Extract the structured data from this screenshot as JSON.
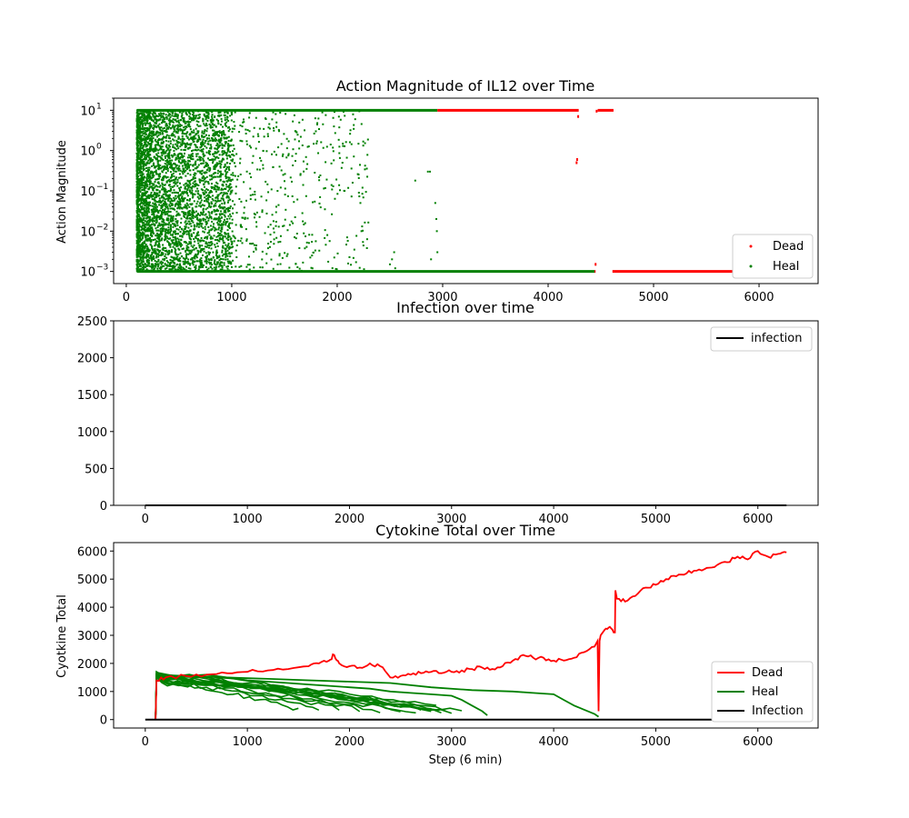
{
  "chart_data": [
    {
      "type": "scatter",
      "title": "Action Magnitude of IL12 over Time",
      "xlabel": "",
      "ylabel": "Action Magnitude",
      "yscale": "log",
      "xlim": [
        -120,
        6560
      ],
      "ylim": [
        0.0005,
        20
      ],
      "xticks": [
        {
          "v": 0,
          "label": "0"
        },
        {
          "v": 1000,
          "label": "1000"
        },
        {
          "v": 2000,
          "label": "2000"
        },
        {
          "v": 3000,
          "label": "3000"
        },
        {
          "v": 4000,
          "label": "4000"
        },
        {
          "v": 5000,
          "label": "5000"
        },
        {
          "v": 6000,
          "label": "6000"
        }
      ],
      "yticks": [
        {
          "v": 0.001,
          "base": "10",
          "exp": "−3"
        },
        {
          "v": 0.01,
          "base": "10",
          "exp": "−2"
        },
        {
          "v": 0.1,
          "base": "10",
          "exp": "−1"
        },
        {
          "v": 1,
          "base": "10",
          "exp": "0"
        },
        {
          "v": 10,
          "base": "10",
          "exp": "1"
        }
      ],
      "legend_placement": "lower-right",
      "series": [
        {
          "name": "Dead",
          "color": "#ff0000",
          "segments": [
            {
              "x": [
                2750,
                4290
              ],
              "y": 10
            },
            {
              "x": [
                4470,
                4620
              ],
              "y": 10
            },
            {
              "x": [
                2900,
                4450
              ],
              "y": 0.001
            },
            {
              "x": [
                4610,
                6280
              ],
              "y": 0.001
            }
          ],
          "points": [
            {
              "x": 4270,
              "y": 0.5
            },
            {
              "x": 4275,
              "y": 0.6
            },
            {
              "x": 4285,
              "y": 7
            },
            {
              "x": 4450,
              "y": 0.0015
            },
            {
              "x": 4460,
              "y": 9.5
            }
          ]
        },
        {
          "name": "Heal",
          "color": "#008000",
          "segments": [
            {
              "x": [
                100,
                2950
              ],
              "y": 10
            },
            {
              "x": [
                100,
                4440
              ],
              "y": 0.001
            }
          ],
          "dense_band": {
            "x": [
              100,
              1000
            ],
            "y": [
              0.001,
              10
            ]
          },
          "sparse_band": {
            "x": [
              1000,
              2300
            ],
            "y": [
              0.001,
              10
            ]
          },
          "points": [
            {
              "x": 2500,
              "y": 0.0015
            },
            {
              "x": 2520,
              "y": 0.002
            },
            {
              "x": 2540,
              "y": 0.003
            },
            {
              "x": 2550,
              "y": 0.0012
            },
            {
              "x": 2740,
              "y": 0.18
            },
            {
              "x": 2860,
              "y": 0.3
            },
            {
              "x": 2880,
              "y": 0.3
            },
            {
              "x": 2890,
              "y": 0.002
            },
            {
              "x": 2930,
              "y": 0.05
            },
            {
              "x": 2940,
              "y": 0.02
            },
            {
              "x": 2945,
              "y": 0.01
            },
            {
              "x": 2950,
              "y": 0.003
            },
            {
              "x": 2240,
              "y": 0.12
            },
            {
              "x": 2220,
              "y": 0.05
            },
            {
              "x": 2230,
              "y": 0.01
            },
            {
              "x": 2050,
              "y": 0.5
            },
            {
              "x": 2070,
              "y": 0.1
            }
          ]
        }
      ]
    },
    {
      "type": "line",
      "title": "Infection over time",
      "xlabel": "",
      "ylabel": "",
      "xlim": [
        -310,
        6590
      ],
      "ylim": [
        0,
        2500
      ],
      "xticks": [
        {
          "v": 0,
          "label": "0"
        },
        {
          "v": 1000,
          "label": "1000"
        },
        {
          "v": 2000,
          "label": "2000"
        },
        {
          "v": 3000,
          "label": "3000"
        },
        {
          "v": 4000,
          "label": "4000"
        },
        {
          "v": 5000,
          "label": "5000"
        },
        {
          "v": 6000,
          "label": "6000"
        }
      ],
      "yticks": [
        {
          "v": 0,
          "label": "0"
        },
        {
          "v": 500,
          "label": "500"
        },
        {
          "v": 1000,
          "label": "1000"
        },
        {
          "v": 1500,
          "label": "1500"
        },
        {
          "v": 2000,
          "label": "2000"
        },
        {
          "v": 2500,
          "label": "2500"
        }
      ],
      "legend_placement": "top-right",
      "series": [
        {
          "name": "infection",
          "color": "#000000",
          "x": [
            0,
            6280
          ],
          "y": [
            0,
            0
          ]
        }
      ]
    },
    {
      "type": "line",
      "title": "Cytokine Total over Time",
      "xlabel": "Step (6 min)",
      "ylabel": "Cyotkine Total",
      "xlim": [
        -310,
        6590
      ],
      "ylim": [
        -300,
        6300
      ],
      "xticks": [
        {
          "v": 0,
          "label": "0"
        },
        {
          "v": 1000,
          "label": "1000"
        },
        {
          "v": 2000,
          "label": "2000"
        },
        {
          "v": 3000,
          "label": "3000"
        },
        {
          "v": 4000,
          "label": "4000"
        },
        {
          "v": 5000,
          "label": "5000"
        },
        {
          "v": 6000,
          "label": "6000"
        }
      ],
      "yticks": [
        {
          "v": 0,
          "label": "0"
        },
        {
          "v": 1000,
          "label": "1000"
        },
        {
          "v": 2000,
          "label": "2000"
        },
        {
          "v": 3000,
          "label": "3000"
        },
        {
          "v": 4000,
          "label": "4000"
        },
        {
          "v": 5000,
          "label": "5000"
        },
        {
          "v": 6000,
          "label": "6000"
        }
      ],
      "legend_placement": "lower-right",
      "series": [
        {
          "name": "Dead",
          "color": "#ff0000",
          "x": [
            100,
            110,
            200,
            400,
            600,
            800,
            1000,
            1200,
            1400,
            1600,
            1700,
            1800,
            1850,
            1900,
            2000,
            2100,
            2200,
            2300,
            2400,
            2500,
            2600,
            2700,
            2800,
            2900,
            3000,
            3100,
            3200,
            3300,
            3400,
            3500,
            3600,
            3700,
            3800,
            3900,
            4000,
            4100,
            4200,
            4300,
            4400,
            4430,
            4440,
            4450,
            4460,
            4500,
            4550,
            4600,
            4605,
            4620,
            4700,
            4800,
            4900,
            5000,
            5100,
            5200,
            5300,
            5400,
            5500,
            5600,
            5700,
            5800,
            5900,
            6000,
            6100,
            6200,
            6280
          ],
          "y": [
            0,
            1400,
            1500,
            1550,
            1600,
            1650,
            1700,
            1750,
            1800,
            1900,
            2000,
            2100,
            2300,
            2000,
            1900,
            1850,
            2000,
            1900,
            1500,
            1550,
            1600,
            1650,
            1700,
            1650,
            1700,
            1750,
            1800,
            1850,
            1800,
            1900,
            2100,
            2300,
            2200,
            2200,
            2100,
            2100,
            2200,
            2400,
            2600,
            2800,
            300,
            2800,
            3000,
            3200,
            3300,
            3100,
            4600,
            4300,
            4200,
            4400,
            4700,
            4800,
            5000,
            5100,
            5200,
            5300,
            5400,
            5500,
            5600,
            5800,
            5700,
            6000,
            5800,
            5900,
            5950
          ]
        },
        {
          "name": "Heal",
          "color": "#008000",
          "x": [
            100,
            110,
            200,
            400,
            600,
            800,
            1000,
            1200,
            1400,
            1600,
            1800,
            2000,
            2200,
            2400,
            2600,
            2800,
            3000,
            3100,
            3200,
            3300,
            3350
          ],
          "y": [
            0,
            1700,
            1500,
            1550,
            1600,
            1500,
            1400,
            1350,
            1300,
            1250,
            1200,
            1150,
            1100,
            1000,
            950,
            900,
            850,
            700,
            500,
            300,
            150
          ]
        },
        {
          "name": "Infection",
          "color": "#000000",
          "x": [
            0,
            6280
          ],
          "y": [
            0,
            0
          ]
        }
      ],
      "heal_bundle": [
        {
          "end_x": 1500,
          "end_y": 350
        },
        {
          "end_x": 1700,
          "end_y": 350
        },
        {
          "end_x": 1900,
          "end_y": 400
        },
        {
          "end_x": 2100,
          "end_y": 350
        },
        {
          "end_x": 2300,
          "end_y": 300
        },
        {
          "end_x": 2500,
          "end_y": 280
        },
        {
          "end_x": 2650,
          "end_y": 250
        },
        {
          "end_x": 2800,
          "end_y": 300
        },
        {
          "end_x": 2900,
          "end_y": 250
        },
        {
          "end_x": 3000,
          "end_y": 250
        },
        {
          "end_x": 3100,
          "end_y": 300
        },
        {
          "end_x": 2700,
          "end_y": 400
        },
        {
          "end_x": 2950,
          "end_y": 350
        },
        {
          "end_x": 2450,
          "end_y": 450
        },
        {
          "end_x": 2850,
          "end_y": 500
        }
      ],
      "heal_long": {
        "x": [
          100,
          110,
          400,
          800,
          1200,
          1600,
          2000,
          2400,
          2800,
          3200,
          3600,
          3800,
          4000,
          4100,
          4200,
          4300,
          4400,
          4440
        ],
        "y": [
          0,
          1600,
          1550,
          1500,
          1450,
          1400,
          1350,
          1300,
          1150,
          1050,
          1000,
          950,
          900,
          700,
          500,
          350,
          200,
          100
        ]
      }
    }
  ]
}
